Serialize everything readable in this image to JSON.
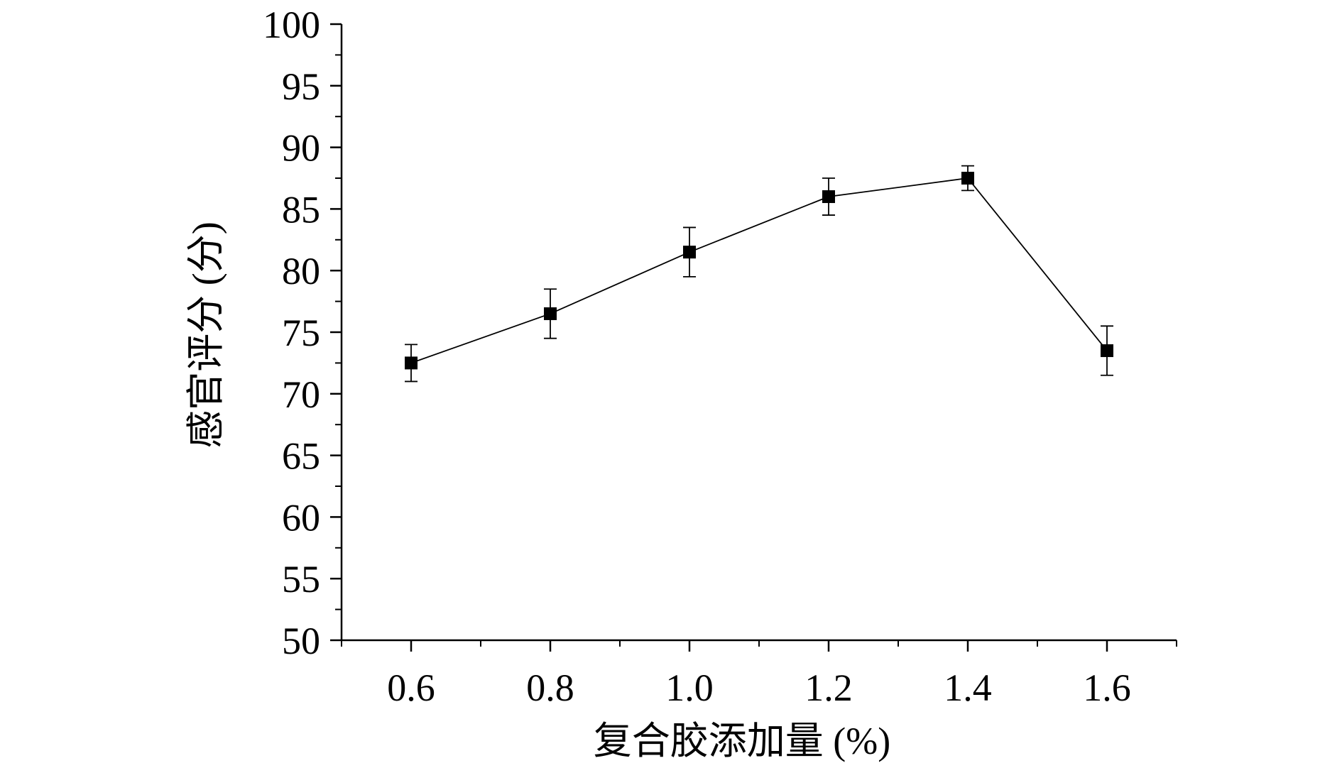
{
  "chart_data": {
    "type": "line",
    "title": "",
    "xlabel": "复合胶添加量 (%)",
    "ylabel": "感官评分 (分)",
    "x": [
      0.6,
      0.8,
      1.0,
      1.2,
      1.4,
      1.6
    ],
    "x_tick_labels": [
      "0.6",
      "0.8",
      "1.0",
      "1.2",
      "1.4",
      "1.6"
    ],
    "xlim": [
      0.5,
      1.7
    ],
    "ylim": [
      50,
      100
    ],
    "y_ticks": [
      50,
      55,
      60,
      65,
      70,
      75,
      80,
      85,
      90,
      95,
      100
    ],
    "series": [
      {
        "values": [
          72.5,
          76.5,
          81.5,
          86.0,
          87.5,
          73.5
        ],
        "errors": [
          1.5,
          2.0,
          2.0,
          1.5,
          1.0,
          2.0
        ],
        "marker": "square",
        "color": "#000000"
      }
    ],
    "grid": false,
    "legend": "none"
  }
}
